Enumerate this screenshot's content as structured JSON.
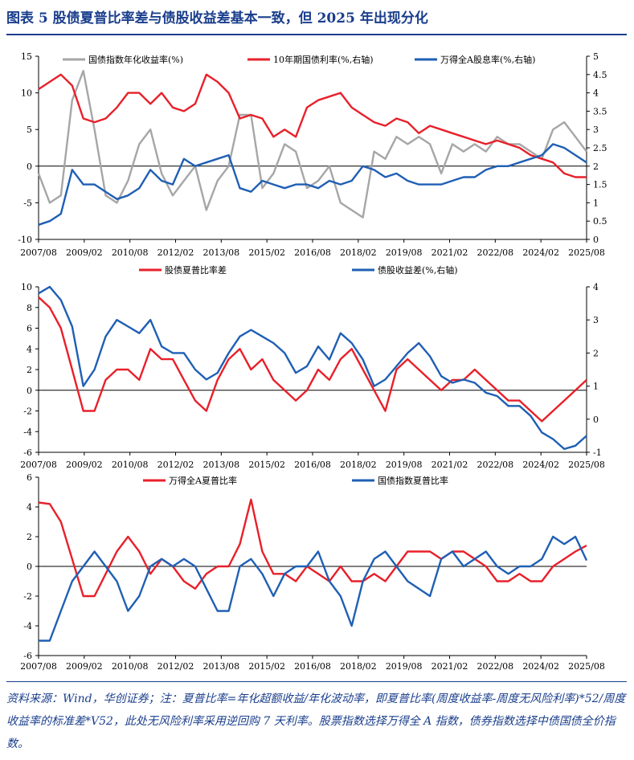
{
  "title": "图表 5   股债夏普比率差与债股收益差基本一致，但 2025 年出现分化",
  "source": "资料来源：Wind，华创证券；注：夏普比率=年化超额收益/年化波动率，即夏普比率(周度收益率-周度无风险利率)*52/周度收益率的标准差*V52，此处无风险利率采用逆回购 7 天利率。股票指数选择万得全 A 指数，债券指数选择中债国债全价指数。",
  "colors": {
    "gray": "#a6a6a6",
    "red": "#e8202a",
    "blue": "#1f5fb4",
    "title": "#1a3e8c"
  },
  "chart_data": [
    {
      "type": "line",
      "x_ticks": [
        "2007/08",
        "2009/02",
        "2010/08",
        "2012/02",
        "2013/08",
        "2015/02",
        "2016/08",
        "2018/02",
        "2019/08",
        "2021/02",
        "2022/08",
        "2024/02",
        "2025/08"
      ],
      "ylim": [
        -10,
        15
      ],
      "yticks": [
        -10,
        -5,
        0,
        5,
        10,
        15
      ],
      "ylim_right": [
        0,
        5
      ],
      "yticks_right": [
        "0",
        "0.5",
        "1",
        "1.5",
        "2",
        "2.5",
        "3",
        "3.5",
        "4",
        "4.5",
        "5"
      ],
      "series": [
        {
          "name": "国债指数年化收益率(%)",
          "axis": "left",
          "color": "#a6a6a6",
          "values": [
            -1,
            -5,
            -4,
            9,
            13,
            5,
            -4,
            -5,
            -2,
            3,
            5,
            -1,
            -4,
            -2,
            0,
            -6,
            -2,
            0,
            7,
            7,
            -3,
            -1,
            3,
            2,
            -3,
            -2,
            0,
            -5,
            -6,
            -7,
            2,
            1,
            4,
            3,
            4,
            3,
            -1,
            3,
            2,
            3,
            2,
            4,
            3,
            3,
            2,
            1,
            5,
            6,
            4,
            2
          ]
        },
        {
          "name": "10年期国债利率(%,右轴)",
          "axis": "right",
          "color": "#e8202a",
          "values": [
            4.1,
            4.3,
            4.5,
            4.2,
            3.3,
            3.2,
            3.3,
            3.6,
            4.0,
            4.0,
            3.7,
            4.0,
            3.6,
            3.5,
            3.7,
            4.5,
            4.3,
            4.0,
            3.3,
            3.4,
            3.3,
            2.8,
            3.0,
            2.8,
            3.6,
            3.8,
            3.9,
            4.0,
            3.6,
            3.4,
            3.2,
            3.1,
            3.3,
            3.2,
            2.9,
            3.1,
            3.0,
            2.9,
            2.8,
            2.7,
            2.6,
            2.7,
            2.6,
            2.5,
            2.3,
            2.2,
            2.1,
            1.8,
            1.7,
            1.7
          ]
        },
        {
          "name": "万得全A股息率(%,右轴)",
          "axis": "right",
          "color": "#1f5fb4",
          "values": [
            0.4,
            0.5,
            0.7,
            1.9,
            1.5,
            1.5,
            1.3,
            1.1,
            1.2,
            1.4,
            1.9,
            1.6,
            1.5,
            2.2,
            2.0,
            2.1,
            2.2,
            2.3,
            1.4,
            1.3,
            1.6,
            1.5,
            1.4,
            1.5,
            1.5,
            1.4,
            1.6,
            1.5,
            1.6,
            2.0,
            1.9,
            1.7,
            1.8,
            1.6,
            1.5,
            1.5,
            1.5,
            1.6,
            1.7,
            1.7,
            1.9,
            2.0,
            2.0,
            2.1,
            2.2,
            2.3,
            2.6,
            2.5,
            2.3,
            2.1
          ]
        }
      ]
    },
    {
      "type": "line",
      "x_ticks": [
        "2007/08",
        "2009/02",
        "2010/08",
        "2012/02",
        "2013/08",
        "2015/02",
        "2016/08",
        "2018/02",
        "2019/08",
        "2021/02",
        "2022/08",
        "2024/02",
        "2025/08"
      ],
      "ylim": [
        -6,
        10
      ],
      "yticks": [
        -6,
        -4,
        -2,
        0,
        2,
        4,
        6,
        8,
        10
      ],
      "ylim_right": [
        -1,
        4
      ],
      "yticks_right": [
        "-1",
        "0",
        "1",
        "2",
        "3",
        "4"
      ],
      "series": [
        {
          "name": "股债夏普比率差",
          "axis": "left",
          "color": "#e8202a",
          "values": [
            9,
            8,
            6,
            2,
            -2,
            -2,
            1,
            2,
            2,
            1,
            4,
            3,
            3,
            1,
            -1,
            -2,
            1,
            3,
            4,
            2,
            3,
            1,
            0,
            -1,
            0,
            2,
            1,
            3,
            4,
            2,
            0,
            -2,
            2,
            3,
            2,
            1,
            0,
            1,
            1,
            2,
            1,
            0,
            -1,
            -1,
            -2,
            -3,
            -2,
            -1,
            0,
            1
          ]
        },
        {
          "name": "债股收益差(%,右轴)",
          "axis": "right",
          "color": "#1f5fb4",
          "values": [
            3.8,
            4.0,
            3.6,
            2.8,
            1.0,
            1.5,
            2.5,
            3.0,
            2.8,
            2.6,
            3.0,
            2.2,
            2.0,
            2.0,
            1.5,
            1.2,
            1.4,
            2.0,
            2.5,
            2.7,
            2.5,
            2.3,
            2.0,
            1.4,
            1.6,
            2.2,
            1.8,
            2.6,
            2.3,
            1.8,
            1.0,
            1.2,
            1.6,
            2.0,
            2.3,
            1.9,
            1.3,
            1.1,
            1.2,
            1.1,
            0.8,
            0.7,
            0.4,
            0.4,
            0.1,
            -0.4,
            -0.6,
            -0.9,
            -0.8,
            -0.5
          ]
        }
      ]
    },
    {
      "type": "line",
      "x_ticks": [
        "2007/08",
        "2009/02",
        "2010/08",
        "2012/02",
        "2013/08",
        "2015/02",
        "2016/08",
        "2018/02",
        "2019/08",
        "2021/02",
        "2022/08",
        "2024/02",
        "2025/08"
      ],
      "ylim": [
        -6,
        6
      ],
      "yticks": [
        -6,
        -4,
        -2,
        0,
        2,
        4,
        6
      ],
      "series": [
        {
          "name": "万得全A夏普比率",
          "axis": "left",
          "color": "#e8202a",
          "values": [
            4.3,
            4.2,
            3.0,
            0.5,
            -2,
            -2,
            -0.5,
            1,
            2,
            1,
            -0.5,
            0.5,
            0,
            -1,
            -1.5,
            -0.5,
            0,
            0,
            1.5,
            4.5,
            1,
            -0.5,
            -0.5,
            -1,
            0,
            -0.5,
            -1,
            0,
            -1,
            -1,
            -0.5,
            -1,
            0,
            1,
            1,
            1,
            0.5,
            1,
            1,
            0.5,
            0,
            -1,
            -1,
            -0.5,
            -1,
            -1,
            0,
            0.5,
            1,
            1.4
          ]
        },
        {
          "name": "国债指数夏普比率",
          "axis": "left",
          "color": "#1f5fb4",
          "values": [
            -5,
            -5,
            -3,
            -1,
            0,
            1,
            0,
            -1,
            -3,
            -2,
            0,
            0.5,
            0,
            0.5,
            0,
            -1.5,
            -3,
            -3,
            0,
            0.5,
            -0.5,
            -2,
            -0.5,
            0,
            0,
            1,
            -1,
            -2,
            -4,
            -1,
            0.5,
            1,
            0,
            -1,
            -1.5,
            -2,
            0.5,
            1,
            0,
            0.5,
            1,
            0,
            -0.5,
            0,
            0,
            0.5,
            2,
            1.5,
            2,
            0.4
          ]
        }
      ]
    }
  ]
}
